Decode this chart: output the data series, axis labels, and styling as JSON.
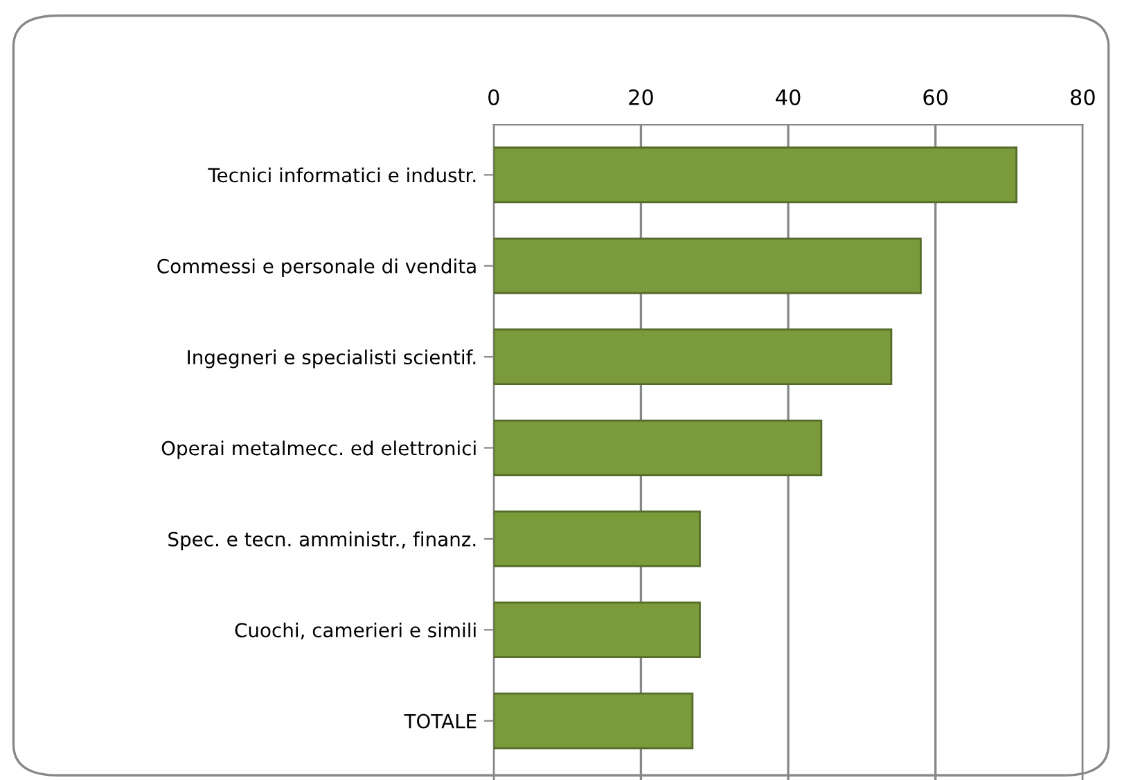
{
  "chart_data": {
    "type": "bar",
    "orientation": "horizontal",
    "categories": [
      "Tecnici informatici e industr.",
      "Commessi e personale di vendita",
      "Ingegneri e specialisti scientif.",
      "Operai metalmecc. ed elettronici",
      "Spec. e tecn. amministr., finanz.",
      "Cuochi, camerieri e simili",
      "TOTALE"
    ],
    "values": [
      71,
      58,
      54,
      44.5,
      28,
      28,
      27
    ],
    "color": "#7a9a3c",
    "xlim": [
      0,
      80
    ],
    "xticks": [
      0,
      20,
      40,
      60,
      80
    ],
    "grid": "x"
  }
}
